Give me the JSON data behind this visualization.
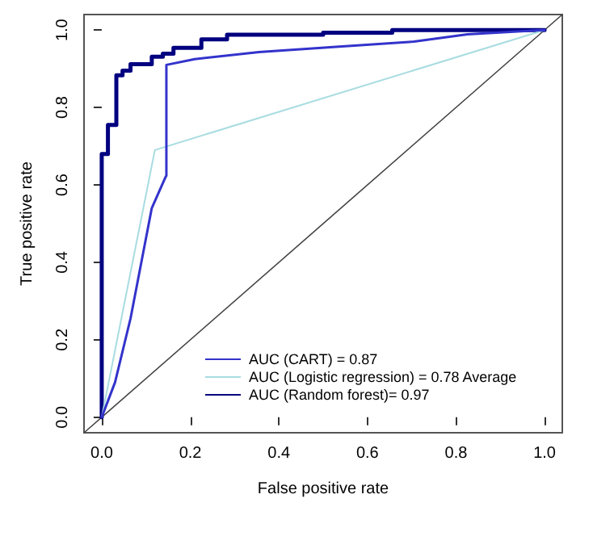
{
  "chart_data": {
    "type": "line",
    "xlabel": "False positive rate",
    "ylabel": "True positive rate",
    "xlim": [
      -0.04,
      1.04
    ],
    "ylim": [
      -0.04,
      1.04
    ],
    "xticks": [
      {
        "value": 0,
        "label": "0.0"
      },
      {
        "value": 0.2,
        "label": "0.2"
      },
      {
        "value": 0.4,
        "label": "0.4"
      },
      {
        "value": 0.6,
        "label": "0.6"
      },
      {
        "value": 0.8,
        "label": "0.8"
      },
      {
        "value": 1,
        "label": "1.0"
      }
    ],
    "yticks": [
      {
        "value": 0,
        "label": "0.0"
      },
      {
        "value": 0.2,
        "label": "0.2"
      },
      {
        "value": 0.4,
        "label": "0.4"
      },
      {
        "value": 0.6,
        "label": "0.6"
      },
      {
        "value": 0.8,
        "label": "0.8"
      },
      {
        "value": 1,
        "label": "1.0"
      }
    ],
    "grid": false,
    "legend": "bottom right",
    "marker": "none",
    "line_style": "solid",
    "series": [
      {
        "name": "AUC (CART) = 0.87",
        "color": "#3333cc",
        "x": [
          0,
          0.03,
          0.065,
          0.113,
          0.144,
          0.146,
          0.146,
          0.21,
          0.355,
          0.536,
          0.705,
          0.826,
          0.995,
          1
        ],
        "values": [
          0,
          0.09,
          0.255,
          0.54,
          0.62,
          0.624,
          0.91,
          0.925,
          0.943,
          0.957,
          0.97,
          0.989,
          1,
          1
        ]
      },
      {
        "name": "AUC (Logistic regression) = 0.78 Average",
        "color": "#a8dce0",
        "x": [
          0,
          0.12,
          1
        ],
        "values": [
          0,
          0.69,
          1
        ]
      },
      {
        "name": "AUC (Random forest)= 0.97",
        "color": "#000080",
        "x": [
          0,
          0,
          0.014,
          0.014,
          0.033,
          0.033,
          0.047,
          0.047,
          0.065,
          0.065,
          0.113,
          0.113,
          0.138,
          0.138,
          0.162,
          0.162,
          0.225,
          0.225,
          0.283,
          0.283,
          0.5,
          0.5,
          0.656,
          0.656,
          1
        ],
        "values": [
          0,
          0.68,
          0.68,
          0.755,
          0.755,
          0.883,
          0.883,
          0.895,
          0.895,
          0.912,
          0.912,
          0.931,
          0.931,
          0.939,
          0.939,
          0.954,
          0.954,
          0.976,
          0.976,
          0.988,
          0.988,
          0.993,
          0.993,
          1,
          1
        ]
      },
      {
        "color": "#444444",
        "x": [
          -0.04,
          1.04
        ],
        "values": [
          -0.04,
          1.04
        ]
      }
    ]
  }
}
